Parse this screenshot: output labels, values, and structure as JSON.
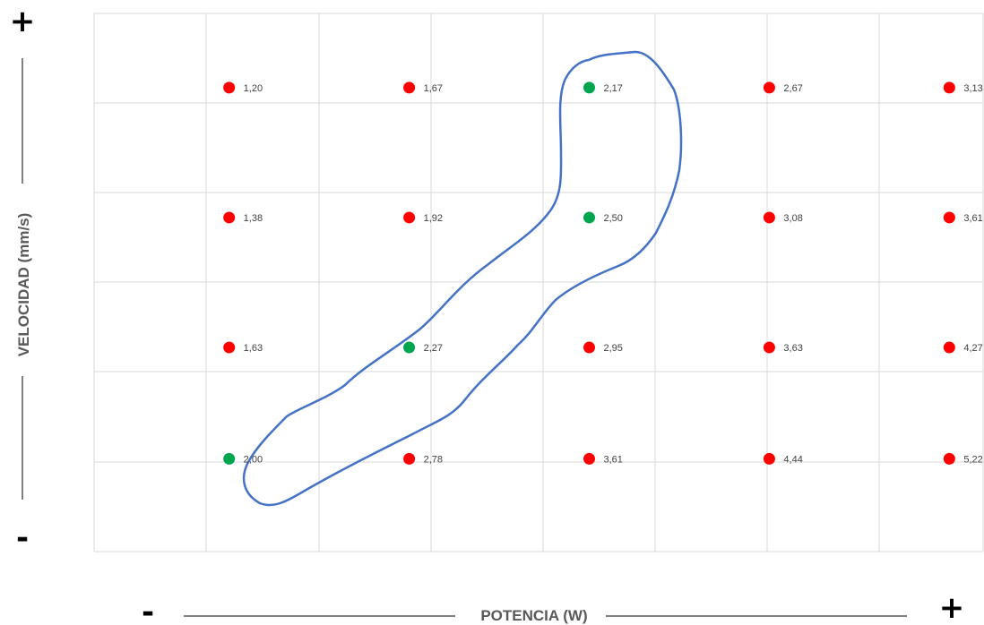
{
  "chart_data": {
    "type": "scatter",
    "title": "",
    "xlabel": "POTENCIA (W)",
    "ylabel": "VELOCIDAD (mm/s)",
    "x_minus": "-",
    "x_plus": "+",
    "y_plus": "+",
    "y_minus": "-",
    "grid": true,
    "xlim": [
      0,
      7.9
    ],
    "ylim": [
      0,
      5.8
    ],
    "colors": {
      "selected": "#00a550",
      "other": "#ff0000",
      "curve": "#4472c4",
      "grid": "#d9d9d9",
      "label": "#404040"
    },
    "points": [
      {
        "x": 1.2,
        "y": 5,
        "label": "1,20",
        "selected": false
      },
      {
        "x": 2.8,
        "y": 5,
        "label": "1,67",
        "selected": false
      },
      {
        "x": 4.4,
        "y": 5,
        "label": "2,17",
        "selected": true
      },
      {
        "x": 6.0,
        "y": 5,
        "label": "2,67",
        "selected": false
      },
      {
        "x": 7.6,
        "y": 5,
        "label": "3,13",
        "selected": false
      },
      {
        "x": 1.2,
        "y": 3.6,
        "label": "1,38",
        "selected": false
      },
      {
        "x": 2.8,
        "y": 3.6,
        "label": "1,92",
        "selected": false
      },
      {
        "x": 4.4,
        "y": 3.6,
        "label": "2,50",
        "selected": true
      },
      {
        "x": 6.0,
        "y": 3.6,
        "label": "3,08",
        "selected": false
      },
      {
        "x": 7.6,
        "y": 3.6,
        "label": "3,61",
        "selected": false
      },
      {
        "x": 1.2,
        "y": 2.2,
        "label": "1,63",
        "selected": false
      },
      {
        "x": 2.8,
        "y": 2.2,
        "label": "2,27",
        "selected": true
      },
      {
        "x": 4.4,
        "y": 2.2,
        "label": "2,95",
        "selected": false
      },
      {
        "x": 6.0,
        "y": 2.2,
        "label": "3,63",
        "selected": false
      },
      {
        "x": 7.6,
        "y": 2.2,
        "label": "4,27",
        "selected": false
      },
      {
        "x": 1.2,
        "y": 1.0,
        "label": "2,00",
        "selected": true
      },
      {
        "x": 2.8,
        "y": 1.0,
        "label": "2,78",
        "selected": false
      },
      {
        "x": 4.4,
        "y": 1.0,
        "label": "3,61",
        "selected": false
      },
      {
        "x": 6.0,
        "y": 1.0,
        "label": "4,44",
        "selected": false
      },
      {
        "x": 7.6,
        "y": 1.0,
        "label": "5,22",
        "selected": false
      }
    ]
  }
}
